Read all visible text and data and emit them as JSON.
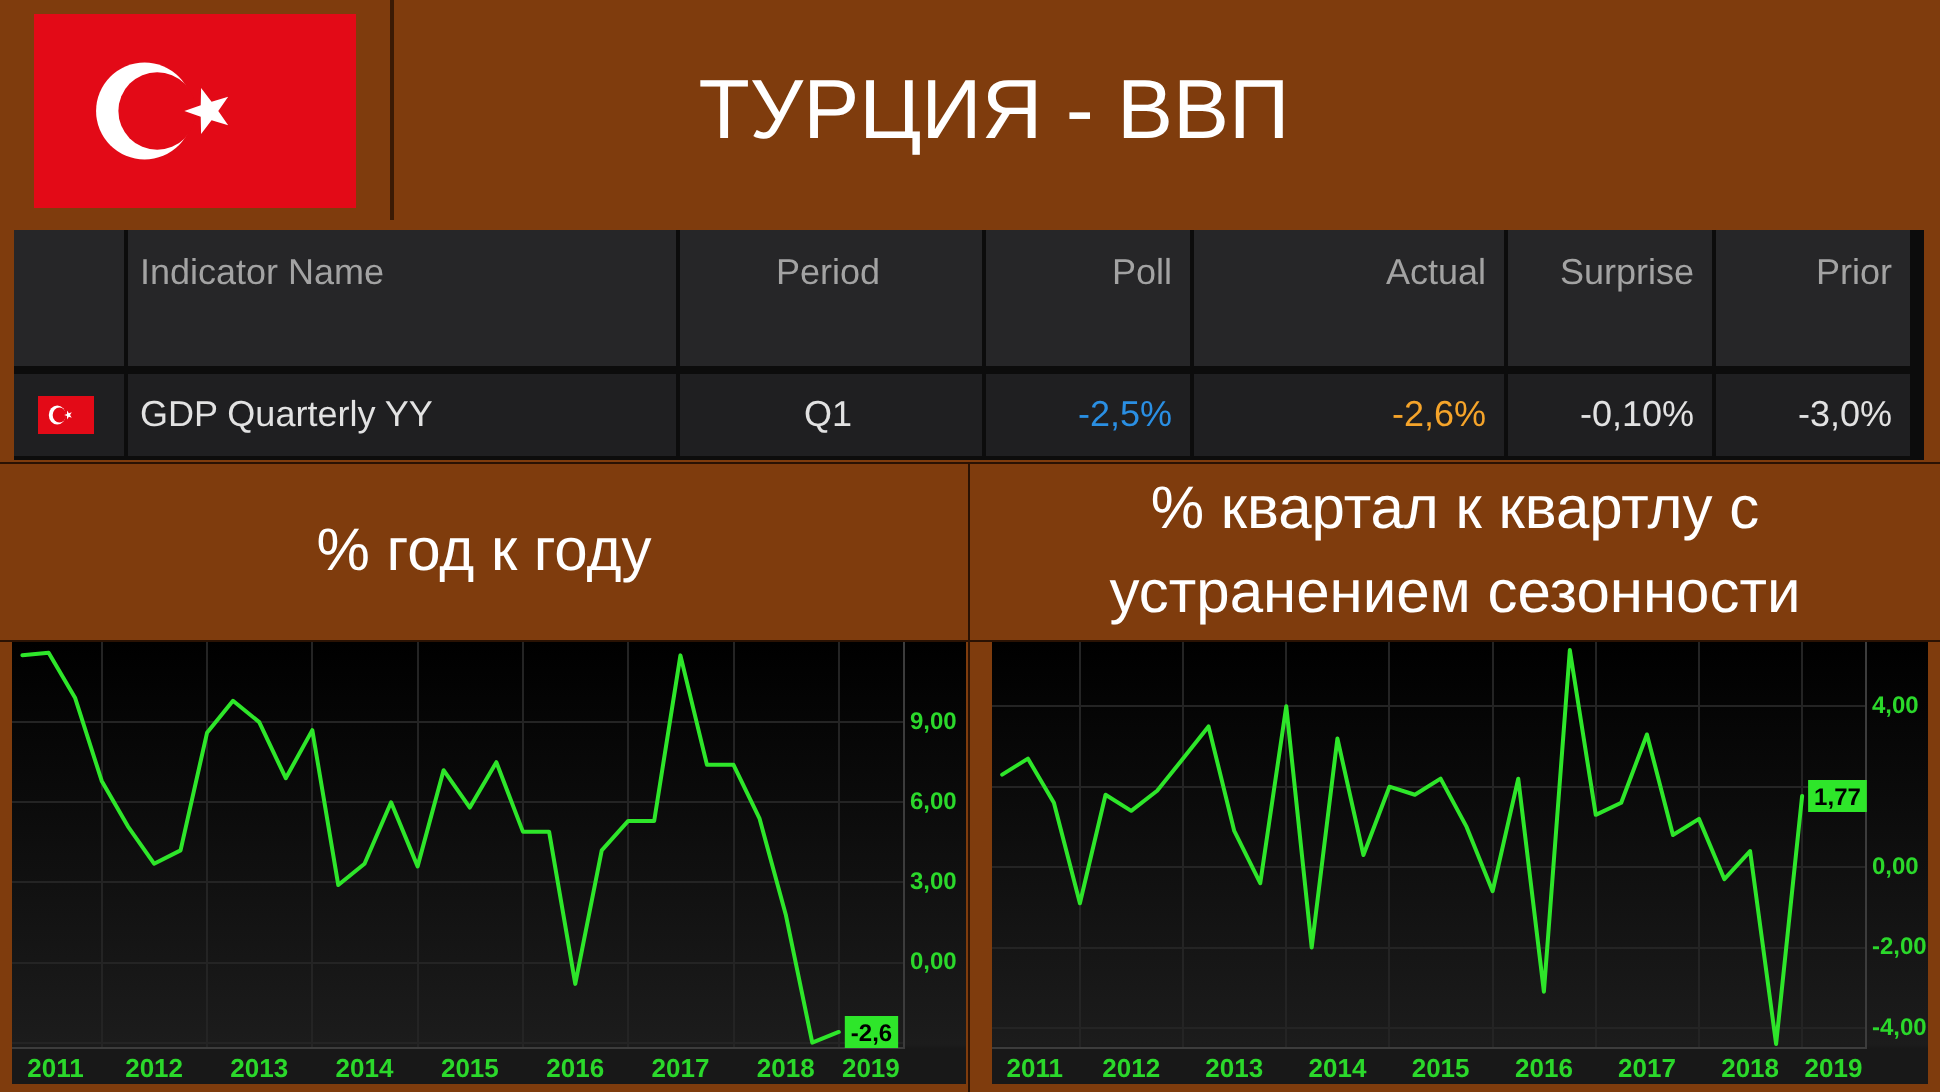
{
  "chart_data": [
    {
      "type": "other",
      "title": "ТУРЦИЯ - ВВП",
      "annotations": [
        "Indicator Name",
        "Period",
        "Poll",
        "Actual",
        "Surprise",
        "Prior",
        "GDP Quarterly YY",
        "Q1",
        "-2,5%",
        "-2,6%",
        "-0,10%",
        "-3,0%"
      ]
    },
    {
      "type": "line",
      "title": "% год к году",
      "x": [
        "2011-04",
        "2011-07",
        "2011-10",
        "2012-01",
        "2012-04",
        "2012-07",
        "2012-10",
        "2013-01",
        "2013-04",
        "2013-07",
        "2013-10",
        "2014-01",
        "2014-04",
        "2014-07",
        "2014-10",
        "2015-01",
        "2015-04",
        "2015-07",
        "2015-10",
        "2016-01",
        "2016-04",
        "2016-07",
        "2016-10",
        "2017-01",
        "2017-04",
        "2017-07",
        "2017-10",
        "2018-01",
        "2018-04",
        "2018-07",
        "2018-10",
        "2019-01"
      ],
      "values": [
        11.5,
        11.6,
        9.9,
        6.8,
        5.1,
        3.7,
        4.2,
        8.6,
        9.8,
        9.0,
        6.9,
        8.7,
        2.9,
        3.7,
        6.0,
        3.6,
        7.2,
        5.8,
        7.5,
        4.9,
        4.9,
        -0.8,
        4.2,
        5.3,
        5.3,
        11.5,
        7.4,
        7.4,
        5.4,
        1.8,
        -3.0,
        -2.6
      ],
      "value_labels": [
        null,
        null,
        null,
        null,
        null,
        null,
        null,
        null,
        null,
        null,
        null,
        null,
        null,
        null,
        null,
        null,
        null,
        null,
        null,
        null,
        null,
        null,
        null,
        null,
        null,
        null,
        null,
        null,
        null,
        null,
        null,
        "-2,6"
      ],
      "color": "#2ee62a",
      "xlim": [
        "2011-02-24",
        "2019-08-15"
      ],
      "xticks": [
        {
          "value": "2011-07-25",
          "label": "2011"
        },
        {
          "value": "2012",
          "label": null
        },
        {
          "value": "2012-07",
          "label": "2012"
        },
        {
          "value": "2013",
          "label": null
        },
        {
          "value": "2013-07",
          "label": "2013"
        },
        {
          "value": "2014",
          "label": null
        },
        {
          "value": "2014-07",
          "label": "2014"
        },
        {
          "value": "2015",
          "label": null
        },
        {
          "value": "2015-07",
          "label": "2015"
        },
        {
          "value": "2016",
          "label": null
        },
        {
          "value": "2016-07",
          "label": "2016"
        },
        {
          "value": "2017",
          "label": null
        },
        {
          "value": "2017-07",
          "label": "2017"
        },
        {
          "value": "2018",
          "label": null
        },
        {
          "value": "2018-07",
          "label": "2018"
        },
        {
          "value": "2019",
          "label": null
        },
        {
          "value": "2019-04-22",
          "label": "2019"
        }
      ],
      "ylim": [
        -3.2,
        12
      ],
      "yticks": [
        {
          "value": -3,
          "label": null
        },
        {
          "value": 0,
          "label": "0,00"
        },
        {
          "value": 3,
          "label": "3,00"
        },
        {
          "value": 6,
          "label": "6,00"
        },
        {
          "value": 9,
          "label": "9,00"
        }
      ],
      "grid": true
    },
    {
      "type": "line",
      "title": "% квартал к квартлу с устранением сезонности",
      "x": [
        "2011-04",
        "2011-07",
        "2011-10",
        "2012-01",
        "2012-04",
        "2012-07",
        "2012-10",
        "2013-01",
        "2013-04",
        "2013-07",
        "2013-10",
        "2014-01",
        "2014-04",
        "2014-07",
        "2014-10",
        "2015-01",
        "2015-04",
        "2015-07",
        "2015-10",
        "2016-01",
        "2016-04",
        "2016-07",
        "2016-10",
        "2017-01",
        "2017-04",
        "2017-07",
        "2017-10",
        "2018-01",
        "2018-04",
        "2018-07",
        "2018-10",
        "2019-01"
      ],
      "values": [
        2.3,
        2.7,
        1.6,
        -0.9,
        1.8,
        1.4,
        1.9,
        2.7,
        3.5,
        0.9,
        -0.4,
        4.0,
        -2.0,
        3.2,
        0.3,
        2.0,
        1.8,
        2.2,
        1.0,
        -0.6,
        2.2,
        -3.1,
        5.4,
        1.3,
        1.6,
        3.3,
        0.8,
        1.2,
        -0.3,
        0.4,
        -4.4,
        1.77
      ],
      "value_labels": [
        null,
        null,
        null,
        null,
        null,
        null,
        null,
        null,
        null,
        null,
        null,
        null,
        null,
        null,
        null,
        null,
        null,
        null,
        null,
        null,
        null,
        null,
        null,
        null,
        null,
        null,
        null,
        null,
        null,
        null,
        null,
        "1,77"
      ],
      "color": "#2ee62a",
      "xlim": [
        "2011-02-24",
        "2019-08-15"
      ],
      "xticks": [
        {
          "value": "2011-07-25",
          "label": "2011"
        },
        {
          "value": "2012",
          "label": null
        },
        {
          "value": "2012-07",
          "label": "2012"
        },
        {
          "value": "2013",
          "label": null
        },
        {
          "value": "2013-07",
          "label": "2013"
        },
        {
          "value": "2014",
          "label": null
        },
        {
          "value": "2014-07",
          "label": "2014"
        },
        {
          "value": "2015",
          "label": null
        },
        {
          "value": "2015-07",
          "label": "2015"
        },
        {
          "value": "2016",
          "label": null
        },
        {
          "value": "2016-07",
          "label": "2016"
        },
        {
          "value": "2017",
          "label": null
        },
        {
          "value": "2017-07",
          "label": "2017"
        },
        {
          "value": "2018",
          "label": null
        },
        {
          "value": "2018-07",
          "label": "2018"
        },
        {
          "value": "2019",
          "label": null
        },
        {
          "value": "2019-04-22",
          "label": "2019"
        }
      ],
      "ylim": [
        -4.5,
        5.6
      ],
      "yticks": [
        {
          "value": -4,
          "label": "-4,00"
        },
        {
          "value": -2,
          "label": "-2,00"
        },
        {
          "value": 0,
          "label": "0,00"
        },
        {
          "value": 2,
          "label": null
        },
        {
          "value": 4,
          "label": "4,00"
        }
      ],
      "grid": true
    }
  ]
}
